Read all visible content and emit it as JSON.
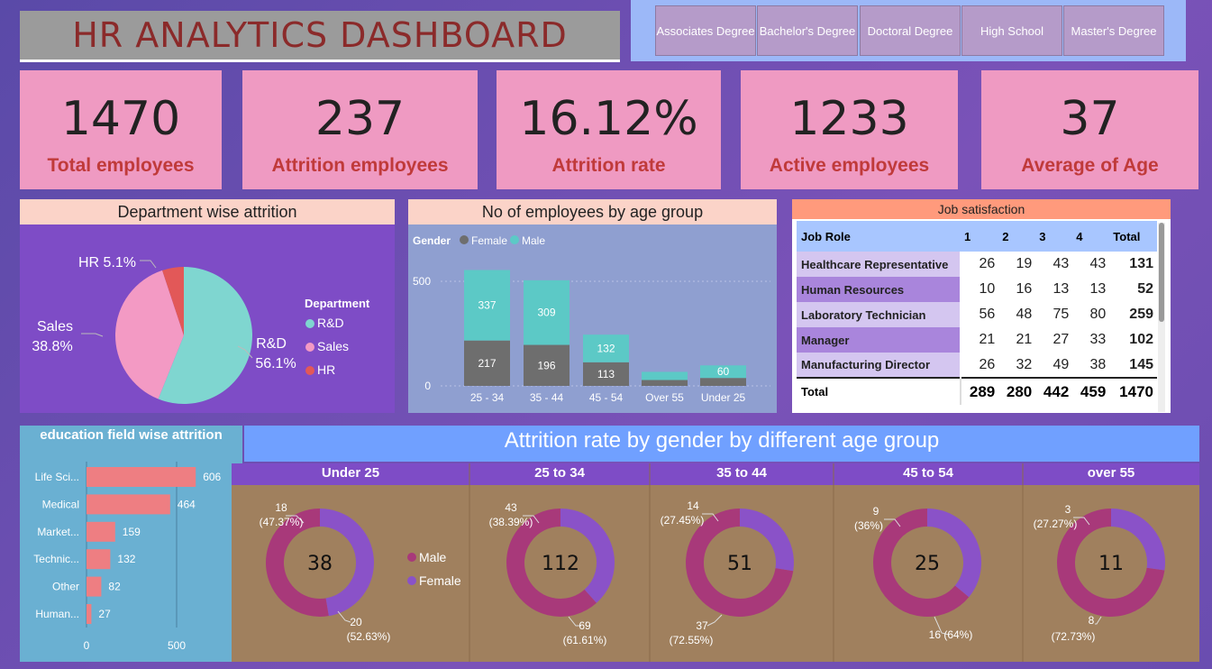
{
  "header": {
    "title": "HR ANALYTICS DASHBOARD"
  },
  "slicer": {
    "options": [
      "Associates Degree",
      "Bachelor's Degree",
      "Doctoral Degree",
      "High School",
      "Master's Degree"
    ]
  },
  "kpis": [
    {
      "value": "1470",
      "label": "Total employees"
    },
    {
      "value": "237",
      "label": "Attrition employees"
    },
    {
      "value": "16.12%",
      "label": "Attrition rate"
    },
    {
      "value": "1233",
      "label": "Active employees"
    },
    {
      "value": "37",
      "label": "Average of Age"
    }
  ],
  "colors": {
    "rd": "#7fd6d0",
    "sales": "#f39ac4",
    "hr": "#e25858",
    "female": "#6e6e6e",
    "male": "#5cc9c6",
    "donut_male": "#a8397a",
    "donut_female": "#8a52c8",
    "edu_bar": "#ee7e82"
  },
  "chart_data": [
    {
      "type": "pie",
      "title": "Department wise attrition",
      "legend_title": "Department",
      "legend_placement": "right",
      "slices": [
        {
          "name": "R&D",
          "value": 56.1,
          "label": "R&D",
          "pct": "56.1%"
        },
        {
          "name": "Sales",
          "value": 38.8,
          "label": "Sales",
          "pct": "38.8%"
        },
        {
          "name": "HR",
          "value": 5.1,
          "label": "HR",
          "pct": "5.1%"
        }
      ]
    },
    {
      "type": "bar",
      "stacked": true,
      "title": "No of employees by age group",
      "legend_title": "Gender",
      "legend_placement": "top-left",
      "categories": [
        "25 - 34",
        "35 - 44",
        "45 - 54",
        "Over 55",
        "Under 25"
      ],
      "series": [
        {
          "name": "Female",
          "values": [
            217,
            196,
            113,
            28,
            38
          ]
        },
        {
          "name": "Male",
          "values": [
            337,
            309,
            132,
            39,
            60
          ]
        }
      ],
      "data_labels": {
        "Female": [
          "217",
          "196",
          "113",
          "",
          ""
        ],
        "Male": [
          "337",
          "309",
          "132",
          "",
          "60"
        ]
      },
      "y_ticks": [
        "0",
        "500"
      ],
      "ylim": [
        0,
        600
      ],
      "grid": true
    },
    {
      "type": "table",
      "title": "Job satisfaction",
      "columns": [
        "Job Role",
        "1",
        "2",
        "3",
        "4",
        "Total"
      ],
      "rows": [
        [
          "Healthcare Representative",
          "26",
          "19",
          "43",
          "43",
          "131"
        ],
        [
          "Human Resources",
          "10",
          "16",
          "13",
          "13",
          "52"
        ],
        [
          "Laboratory Technician",
          "56",
          "48",
          "75",
          "80",
          "259"
        ],
        [
          "Manager",
          "21",
          "21",
          "27",
          "33",
          "102"
        ],
        [
          "Manufacturing Director",
          "26",
          "32",
          "49",
          "38",
          "145"
        ]
      ],
      "total": [
        "Total",
        "289",
        "280",
        "442",
        "459",
        "1470"
      ]
    },
    {
      "type": "bar",
      "orientation": "horizontal",
      "title": "education field wise attrition",
      "categories": [
        "Life Sci...",
        "Medical",
        "Market...",
        "Technic...",
        "Other",
        "Human..."
      ],
      "values": [
        606,
        464,
        159,
        132,
        82,
        27
      ],
      "x_ticks": [
        "0",
        "500"
      ],
      "xlim": [
        0,
        700
      ],
      "grid": true
    },
    {
      "type": "pie",
      "variant": "donut",
      "title": "Attrition rate by gender by different age group",
      "legend": [
        "Male",
        "Female"
      ],
      "groups": [
        {
          "name": "Under 25",
          "total": "38",
          "female": 18,
          "male": 20,
          "female_label": [
            "18",
            "(47.37%)"
          ],
          "male_label": [
            "20",
            "(52.63%)"
          ]
        },
        {
          "name": "25 to 34",
          "total": "112",
          "female": 43,
          "male": 69,
          "female_label": [
            "43",
            "(38.39%)"
          ],
          "male_label": [
            "69",
            "(61.61%)"
          ]
        },
        {
          "name": "35 to 44",
          "total": "51",
          "female": 14,
          "male": 37,
          "female_label": [
            "14",
            "(27.45%)"
          ],
          "male_label": [
            "37",
            "(72.55%)"
          ]
        },
        {
          "name": "45 to 54",
          "total": "25",
          "female": 9,
          "male": 16,
          "female_label": [
            "9",
            "(36%)"
          ],
          "male_label": [
            "16 (64%)"
          ]
        },
        {
          "name": "over 55",
          "total": "11",
          "female": 3,
          "male": 8,
          "female_label": [
            "3",
            "(27.27%)"
          ],
          "male_label": [
            "8",
            "(72.73%)"
          ]
        }
      ]
    }
  ]
}
